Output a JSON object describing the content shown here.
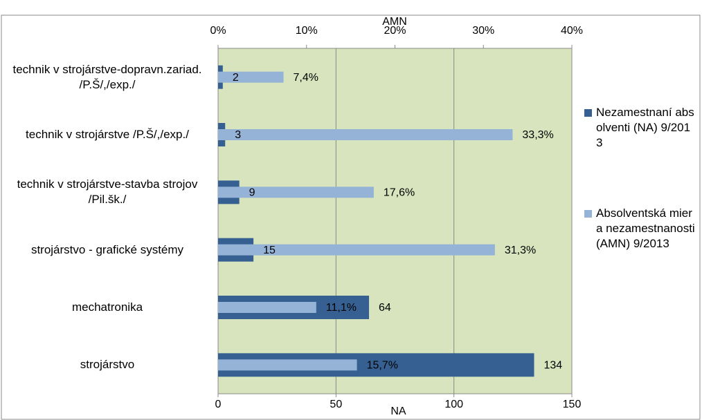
{
  "chart_data": {
    "type": "bar",
    "orientation": "horizontal",
    "categories": [
      "technik v strojárstve-dopravn.zariad. /P.Š/,/exp./",
      "technik v strojárstve /P.Š/,/exp./",
      "technik v strojárstve-stavba strojov /Pil.šk./",
      "strojárstvo - grafické systémy",
      "mechatronika",
      "strojárstvo"
    ],
    "series": [
      {
        "name": "Nezamestnaní absolventi (NA) 9/2013",
        "color": "#376092",
        "values": [
          2,
          3,
          9,
          15,
          64,
          134
        ]
      },
      {
        "name": "Absolventská miera nezamestnanosti (AMN) 9/2013",
        "color": "#95b3d7",
        "axis": "x2",
        "values": [
          7.4,
          33.3,
          17.6,
          31.3,
          11.1,
          15.7
        ],
        "value_labels": [
          "7,4%",
          "33,3%",
          "17,6%",
          "31,3%",
          "11,1%",
          "15,7%"
        ]
      }
    ],
    "x_label": "NA",
    "x2_label": "AMN",
    "xlim": [
      0,
      150
    ],
    "xticks": [
      0,
      50,
      100,
      150
    ],
    "x2lim": [
      0,
      40
    ],
    "x2ticks": [
      {
        "value": 0,
        "label": "0%"
      },
      {
        "value": 10,
        "label": "10%"
      },
      {
        "value": 20,
        "label": "20%"
      },
      {
        "value": 30,
        "label": "30%"
      },
      {
        "value": 40,
        "label": "40%"
      }
    ],
    "grid": true,
    "plot_background": "#d7e4bd",
    "legend": "right"
  }
}
